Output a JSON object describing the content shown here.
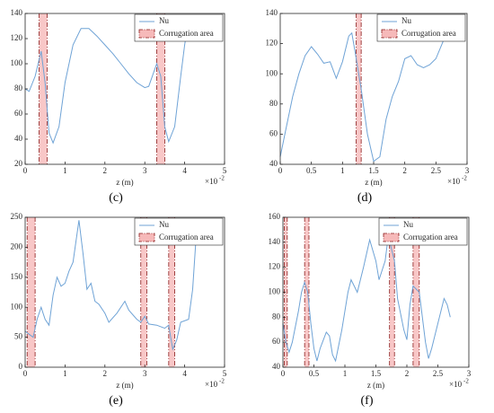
{
  "chart_data": [
    {
      "type": "line",
      "caption": "(c)",
      "xlabel": "z (m)",
      "multiplier": {
        "base": "×10",
        "power": "-2"
      },
      "xlim": [
        0,
        5
      ],
      "xticks": [
        0,
        1,
        2,
        3,
        4,
        5
      ],
      "ylim": [
        20,
        140
      ],
      "yticks": [
        20,
        40,
        60,
        80,
        100,
        120,
        140
      ],
      "legend": "northeast",
      "band_label": "Corrugation area",
      "band_color": "#f6b9b9",
      "bands": [
        [
          0.35,
          0.55
        ],
        [
          3.3,
          3.5
        ]
      ],
      "series": [
        {
          "name": "Nu",
          "color": "#6fa3d6",
          "x": [
            0,
            0.1,
            0.25,
            0.4,
            0.5,
            0.6,
            0.7,
            0.85,
            1.0,
            1.2,
            1.4,
            1.6,
            1.8,
            2.0,
            2.2,
            2.4,
            2.6,
            2.8,
            3.0,
            3.1,
            3.3,
            3.4,
            3.5,
            3.6,
            3.75,
            3.9,
            4.0,
            4.05
          ],
          "values": [
            80,
            78,
            90,
            110,
            85,
            45,
            37,
            50,
            85,
            115,
            128,
            128,
            122,
            115,
            108,
            100,
            92,
            85,
            81,
            82,
            100,
            90,
            50,
            38,
            50,
            90,
            115,
            125
          ]
        }
      ]
    },
    {
      "type": "line",
      "caption": "(d)",
      "xlabel": "z (m)",
      "multiplier": {
        "base": "×10",
        "power": "-2"
      },
      "xlim": [
        0,
        3
      ],
      "xticks": [
        0,
        0.5,
        1,
        1.5,
        2,
        2.5,
        3
      ],
      "ylim": [
        40,
        140
      ],
      "yticks": [
        40,
        60,
        80,
        100,
        120,
        140
      ],
      "legend": "northeast",
      "band_label": "Corrugation area",
      "band_color": "#f6b9b9",
      "bands": [
        [
          1.22,
          1.3
        ]
      ],
      "series": [
        {
          "name": "Nu",
          "color": "#6fa3d6",
          "x": [
            0,
            0.1,
            0.2,
            0.3,
            0.4,
            0.5,
            0.6,
            0.7,
            0.8,
            0.9,
            1.0,
            1.1,
            1.15,
            1.2,
            1.3,
            1.4,
            1.5,
            1.6,
            1.7,
            1.8,
            1.9,
            2.0,
            2.1,
            2.2,
            2.3,
            2.4,
            2.5,
            2.6,
            2.65
          ],
          "values": [
            45,
            65,
            85,
            100,
            112,
            118,
            113,
            107,
            108,
            97,
            108,
            125,
            127,
            115,
            90,
            60,
            42,
            45,
            70,
            85,
            95,
            110,
            112,
            106,
            104,
            106,
            110,
            120,
            125
          ]
        }
      ]
    },
    {
      "type": "line",
      "caption": "(e)",
      "xlabel": "z (m)",
      "multiplier": {
        "base": "×10",
        "power": "-2"
      },
      "xlim": [
        0,
        5
      ],
      "xticks": [
        0,
        1,
        2,
        3,
        4,
        5
      ],
      "ylim": [
        0,
        250
      ],
      "yticks": [
        0,
        50,
        100,
        150,
        200,
        250
      ],
      "legend": "northeast",
      "band_label": "Corrugation area",
      "band_color": "#f6b9b9",
      "bands": [
        [
          0.05,
          0.25
        ],
        [
          2.9,
          3.05
        ],
        [
          3.6,
          3.75
        ]
      ],
      "series": [
        {
          "name": "Nu",
          "color": "#6fa3d6",
          "x": [
            0,
            0.1,
            0.2,
            0.3,
            0.4,
            0.5,
            0.6,
            0.7,
            0.8,
            0.9,
            1.0,
            1.1,
            1.2,
            1.35,
            1.45,
            1.55,
            1.65,
            1.75,
            1.85,
            2.0,
            2.1,
            2.3,
            2.5,
            2.6,
            2.8,
            2.9,
            3.0,
            3.1,
            3.3,
            3.5,
            3.6,
            3.7,
            3.8,
            3.9,
            4.1,
            4.2,
            4.3
          ],
          "values": [
            60,
            55,
            50,
            80,
            100,
            80,
            70,
            120,
            150,
            135,
            140,
            160,
            175,
            245,
            190,
            130,
            140,
            110,
            105,
            90,
            75,
            90,
            110,
            95,
            80,
            75,
            85,
            72,
            70,
            65,
            70,
            30,
            45,
            75,
            80,
            130,
            230
          ]
        }
      ]
    },
    {
      "type": "line",
      "caption": "(f)",
      "xlabel": "z (m)",
      "multiplier": {
        "base": "×10",
        "power": "-2"
      },
      "xlim": [
        0,
        3
      ],
      "xticks": [
        0,
        0.5,
        1,
        1.5,
        2,
        2.5,
        3
      ],
      "ylim": [
        40,
        160
      ],
      "yticks": [
        40,
        60,
        80,
        100,
        120,
        140,
        160
      ],
      "legend": "northeast",
      "band_label": "Corrugation area",
      "band_color": "#f6b9b9",
      "bands": [
        [
          0.02,
          0.07
        ],
        [
          0.35,
          0.42
        ],
        [
          1.72,
          1.8
        ],
        [
          2.1,
          2.2
        ]
      ],
      "series": [
        {
          "name": "Nu",
          "color": "#6fa3d6",
          "x": [
            0,
            0.05,
            0.1,
            0.15,
            0.25,
            0.3,
            0.35,
            0.4,
            0.45,
            0.5,
            0.55,
            0.6,
            0.7,
            0.75,
            0.8,
            0.85,
            0.95,
            1.05,
            1.1,
            1.2,
            1.3,
            1.4,
            1.5,
            1.55,
            1.65,
            1.7,
            1.8,
            1.85,
            1.95,
            2.0,
            2.05,
            2.1,
            2.2,
            2.3,
            2.35,
            2.4,
            2.5,
            2.6,
            2.65,
            2.7
          ],
          "values": [
            75,
            60,
            52,
            60,
            85,
            100,
            108,
            100,
            75,
            55,
            45,
            55,
            68,
            65,
            50,
            45,
            70,
            100,
            110,
            100,
            120,
            142,
            125,
            110,
            125,
            145,
            125,
            95,
            70,
            62,
            90,
            105,
            100,
            60,
            47,
            55,
            75,
            95,
            90,
            80
          ]
        }
      ]
    }
  ]
}
